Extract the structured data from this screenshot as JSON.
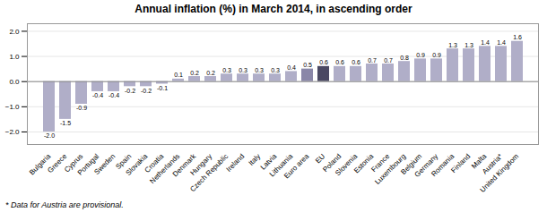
{
  "chart_data": {
    "type": "bar",
    "title": "Annual inflation (%) in March 2014, in ascending order",
    "annotations": [
      "* Data for Austria are provisional."
    ],
    "categories": [
      "Bulgaria",
      "Greece",
      "Cyprus",
      "Portugal",
      "Sweden",
      "Spain",
      "Slovakia",
      "Croatia",
      "Netherlands",
      "Denmark",
      "Hungary",
      "Czech Republic",
      "Ireland",
      "Italy",
      "Latvia",
      "Lithuania",
      "Euro area",
      "EU",
      "Poland",
      "Slovenia",
      "Estonia",
      "France",
      "Luxembourg",
      "Belgium",
      "Germany",
      "Romania",
      "Finland",
      "Malta",
      "Austria*",
      "United Kingdom"
    ],
    "values": [
      -2.0,
      -1.5,
      -0.9,
      -0.4,
      -0.4,
      -0.2,
      -0.2,
      -0.1,
      0.1,
      0.2,
      0.2,
      0.3,
      0.3,
      0.3,
      0.3,
      0.4,
      0.5,
      0.6,
      0.6,
      0.6,
      0.7,
      0.7,
      0.8,
      0.9,
      0.9,
      1.3,
      1.3,
      1.4,
      1.4,
      1.6
    ],
    "value_labels": [
      "-2.0",
      "-1.5",
      "-0.9",
      "-0.4",
      "-0.4",
      "-0.2",
      "-0.2",
      "-0.1",
      "0.1",
      "0.2",
      "0.2",
      "0.3",
      "0.3",
      "0.3",
      "0.3",
      "0.4",
      "0.5",
      "0.6",
      "0.6",
      "0.6",
      "0.7",
      "0.7",
      "0.8",
      "0.9",
      "0.9",
      "1.3",
      "1.3",
      "1.4",
      "1.4",
      "1.6"
    ],
    "colors": [
      "#b0aec8",
      "#b0aec8",
      "#b0aec8",
      "#b0aec8",
      "#b0aec8",
      "#b0aec8",
      "#b0aec8",
      "#b0aec8",
      "#b0aec8",
      "#b0aec8",
      "#b0aec8",
      "#b0aec8",
      "#b0aec8",
      "#b0aec8",
      "#b0aec8",
      "#b0aec8",
      "#8a87a8",
      "#4a4862",
      "#b0aec8",
      "#b0aec8",
      "#b0aec8",
      "#b0aec8",
      "#b0aec8",
      "#b0aec8",
      "#b0aec8",
      "#b0aec8",
      "#b0aec8",
      "#b0aec8",
      "#b0aec8",
      "#b0aec8"
    ],
    "ylim": [
      -2.5,
      2.3
    ],
    "yticks": [
      -2,
      -1,
      0,
      1,
      2
    ],
    "grid": true,
    "data_labels": true
  }
}
